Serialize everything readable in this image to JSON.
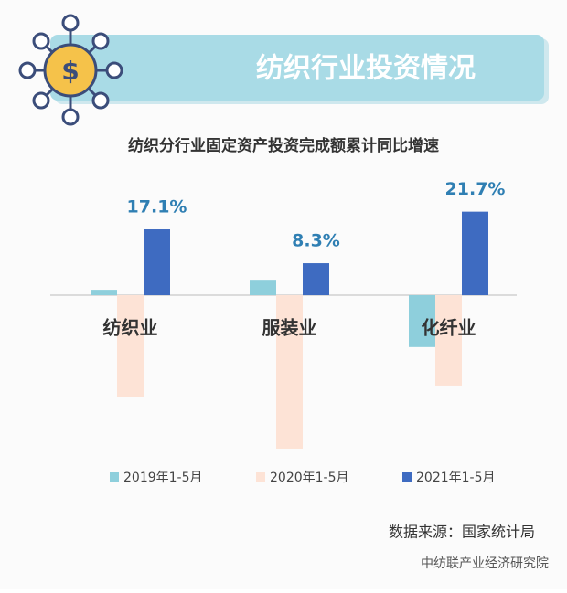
{
  "header": {
    "title": "纺织行业投资情况"
  },
  "chart_data": {
    "type": "bar",
    "title": "纺织分行业固定资产投资完成额累计同比增速",
    "categories": [
      "纺织业",
      "服装业",
      "化纤业"
    ],
    "series": [
      {
        "name": "2019年1-5月",
        "color": "#8ecfdc",
        "values": [
          1.4,
          4.0,
          -13.5
        ]
      },
      {
        "name": "2020年1-5月",
        "color": "#fde3d6",
        "values": [
          -26.6,
          -39.9,
          -23.5
        ]
      },
      {
        "name": "2021年1-5月",
        "color": "#3e6bc1",
        "values": [
          17.1,
          8.3,
          21.7
        ],
        "value_labels": [
          "17.1%",
          "8.3%",
          "21.7%"
        ]
      }
    ],
    "label_color": "#2f7fb3"
  },
  "source": "数据来源：国家统计局",
  "watermark": "中纺联产业经济研究院"
}
